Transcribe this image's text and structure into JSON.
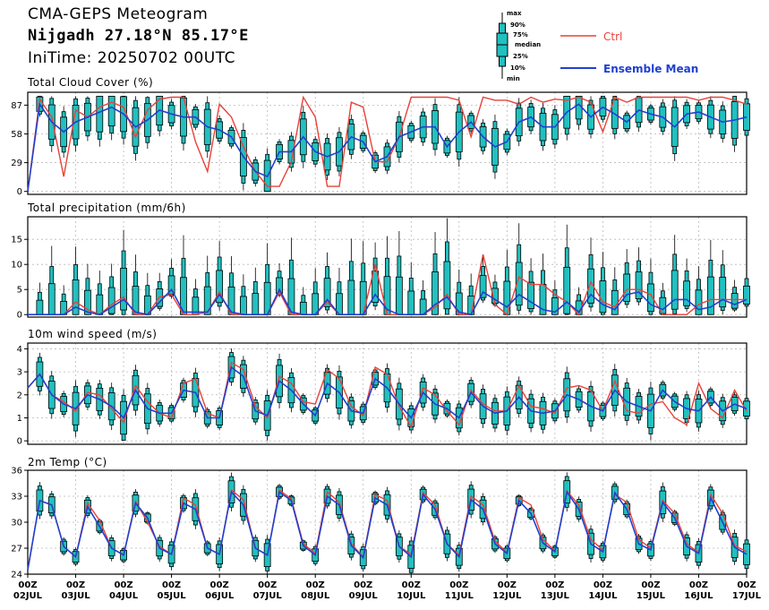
{
  "header": {
    "title": "CMA-GEPS Meteogram",
    "location": "Nijgadh 27.18°N 85.17°E",
    "init_time": "IniTime: 20250702 00UTC"
  },
  "boxplot_key": {
    "labels": [
      "max",
      "90%",
      "75%",
      "median",
      "25%",
      "10%",
      "min"
    ]
  },
  "legend": {
    "ctrl_label": "Ctrl",
    "mean_label": "Ensemble Mean"
  },
  "colors": {
    "ctrl": "#e8413a",
    "mean": "#2040d0",
    "box": "#22c0c0",
    "grid": "#b8b8b8"
  },
  "x_axis": {
    "hours_per_day": 24,
    "step_hours": 6,
    "start": "2025-07-02T00Z",
    "end": "2025-07-17T00Z",
    "tick_labels": [
      [
        "00Z",
        "02JUL"
      ],
      [
        "00Z",
        "03JUL"
      ],
      [
        "00Z",
        "04JUL"
      ],
      [
        "00Z",
        "05JUL"
      ],
      [
        "00Z",
        "06JUL"
      ],
      [
        "00Z",
        "07JUL"
      ],
      [
        "00Z",
        "08JUL"
      ],
      [
        "00Z",
        "09JUL"
      ],
      [
        "00Z",
        "10JUL"
      ],
      [
        "00Z",
        "11JUL"
      ],
      [
        "00Z",
        "12JUL"
      ],
      [
        "00Z",
        "13JUL"
      ],
      [
        "00Z",
        "14JUL"
      ],
      [
        "00Z",
        "15JUL"
      ],
      [
        "00Z",
        "16JUL"
      ],
      [
        "00Z",
        "17JUL"
      ]
    ]
  },
  "chart_data": [
    {
      "type": "boxplot-line",
      "title": "Total Cloud Cover (%)",
      "ylim": [
        -3,
        100
      ],
      "yticks": [
        0,
        29,
        58,
        87
      ],
      "grid": true,
      "series": [
        {
          "name": "Ctrl",
          "values": [
            0,
            93,
            75,
            15,
            82,
            75,
            85,
            90,
            85,
            55,
            82,
            93,
            95,
            95,
            50,
            20,
            88,
            75,
            45,
            20,
            5,
            5,
            30,
            95,
            75,
            5,
            5,
            90,
            85,
            30,
            30,
            55,
            95,
            95,
            95,
            95,
            92,
            55,
            95,
            92,
            92,
            88,
            95,
            90,
            93,
            92,
            95,
            90,
            60,
            95,
            90,
            95,
            95,
            95,
            95,
            95,
            92,
            95,
            95,
            92,
            88
          ]
        },
        {
          "name": "Ensemble Mean",
          "values": [
            0,
            88,
            70,
            60,
            70,
            75,
            80,
            85,
            78,
            65,
            72,
            82,
            78,
            75,
            75,
            65,
            62,
            55,
            35,
            20,
            15,
            40,
            40,
            55,
            40,
            35,
            40,
            55,
            50,
            30,
            35,
            55,
            60,
            65,
            65,
            45,
            60,
            70,
            55,
            45,
            50,
            70,
            75,
            65,
            65,
            80,
            88,
            75,
            85,
            78,
            70,
            82,
            78,
            75,
            65,
            78,
            80,
            75,
            70,
            72,
            75
          ]
        }
      ]
    },
    {
      "type": "boxplot-line",
      "title": "Total precipitation (mm/6h)",
      "ylim": [
        -0.5,
        19.5
      ],
      "yticks": [
        0,
        5,
        10,
        15
      ],
      "grid": true,
      "series": [
        {
          "name": "Ctrl",
          "values": [
            0,
            0,
            0,
            0,
            2.5,
            1,
            0,
            2,
            3.5,
            0,
            0,
            3.5,
            4,
            0,
            0,
            0.5,
            4.5,
            0,
            0,
            0,
            0,
            4.5,
            0,
            0,
            0,
            2.5,
            0,
            0,
            0,
            10,
            0,
            0,
            0,
            0,
            1.5,
            4,
            0,
            0,
            12,
            2,
            0,
            7.5,
            6,
            6,
            4,
            2.5,
            0,
            6.5,
            2.5,
            1.5,
            5,
            5,
            4,
            0,
            0,
            0,
            2,
            3,
            3,
            3,
            3
          ]
        },
        {
          "name": "Ensemble Mean",
          "values": [
            0,
            0,
            0,
            0,
            1.5,
            0.5,
            0,
            1.5,
            3,
            0.5,
            0,
            2.5,
            5,
            0.5,
            0.5,
            0.5,
            4,
            0.5,
            0,
            0,
            0,
            5,
            0.5,
            0,
            0,
            3,
            0,
            0,
            0,
            4,
            1,
            0,
            0,
            0,
            2,
            3.5,
            0.5,
            0,
            4.5,
            3,
            1.5,
            4,
            2.5,
            1,
            0.5,
            2.5,
            0.5,
            4,
            2,
            1,
            4,
            4.5,
            2,
            1,
            3,
            3,
            1,
            1.5,
            3,
            2,
            3
          ]
        }
      ]
    },
    {
      "type": "boxplot-line",
      "title": "10m wind speed (m/s)",
      "ylim": [
        -0.15,
        4.25
      ],
      "yticks": [
        0,
        1,
        2,
        3,
        4
      ],
      "grid": true,
      "series": [
        {
          "name": "Ctrl",
          "values": [
            2.3,
            2.9,
            2,
            1.7,
            1.3,
            2.1,
            2,
            1.4,
            0.8,
            2.4,
            1.7,
            1.2,
            1,
            2.5,
            2.7,
            1.2,
            1,
            3.4,
            3.1,
            1.5,
            1,
            2.8,
            2.5,
            1.7,
            1.6,
            3.1,
            2.7,
            1.5,
            1.1,
            3.2,
            2.9,
            1.5,
            0.6,
            2.3,
            2,
            1.3,
            0.7,
            2.2,
            1.6,
            1.3,
            1.3,
            2.4,
            1.5,
            1.4,
            1.2,
            2.3,
            2.4,
            2.2,
            1.3,
            2.6,
            1.3,
            1.2,
            1.6,
            1.7,
            1.0,
            0.7,
            2.5,
            1.4,
            1.0,
            2.2,
            1.3
          ]
        },
        {
          "name": "Ensemble Mean",
          "values": [
            2.3,
            2.9,
            2,
            1.6,
            1.4,
            2,
            1.8,
            1.5,
            1,
            2.2,
            1.4,
            1.2,
            1.2,
            2.2,
            2.1,
            1,
            1,
            3.2,
            2.8,
            1.3,
            1.1,
            2.6,
            2.2,
            1.6,
            1.1,
            2.5,
            2.1,
            1.3,
            1.2,
            2.7,
            2.3,
            1.6,
            1,
            2.1,
            1.6,
            1.4,
            1,
            2.1,
            1.5,
            1.2,
            1.3,
            1.9,
            1.3,
            1.2,
            1.3,
            2,
            1.8,
            1.5,
            1.3,
            2.2,
            1.7,
            1.5,
            1.3,
            2.2,
            1.7,
            1.4,
            1.3,
            1.9,
            1.3,
            1.6,
            1.4
          ]
        }
      ]
    },
    {
      "type": "boxplot-line",
      "title": "2m Temp (°C)",
      "ylim": [
        24,
        36
      ],
      "yticks": [
        24,
        27,
        30,
        33,
        36
      ],
      "grid": true,
      "series": [
        {
          "name": "Ctrl",
          "values": [
            24.5,
            32.5,
            32,
            27.2,
            26,
            32.2,
            30.2,
            27,
            26.2,
            32.4,
            30,
            27.2,
            26.3,
            32.8,
            32,
            27,
            26.3,
            33.7,
            32.6,
            27,
            26.2,
            33.7,
            32.7,
            27.5,
            26.4,
            33.5,
            32.3,
            27.5,
            26,
            33.2,
            32.5,
            27.2,
            26.3,
            33.4,
            32,
            27.5,
            26.2,
            33,
            32,
            27.8,
            26.5,
            32.8,
            32,
            28,
            26.7,
            33.6,
            32,
            28,
            26.8,
            33.2,
            32.3,
            28,
            27,
            32.5,
            31,
            27.5,
            26.5,
            33.2,
            31,
            27.3,
            26.6
          ]
        },
        {
          "name": "Ensemble Mean",
          "values": [
            24.5,
            32.5,
            32,
            27.2,
            26,
            31.8,
            29.5,
            27,
            26.2,
            32.2,
            30.5,
            27,
            26.3,
            32.2,
            31.5,
            27,
            26.3,
            33.5,
            32,
            27,
            26.2,
            33.5,
            32.5,
            27.3,
            26.2,
            33,
            32,
            27.3,
            25.9,
            32.8,
            32,
            27.2,
            26,
            33.2,
            31.5,
            27.5,
            26,
            32.6,
            31.5,
            27.5,
            26.4,
            32.5,
            31,
            27.6,
            26.6,
            33.5,
            31.5,
            27.5,
            26.6,
            33.4,
            31.5,
            27.5,
            26.8,
            32.3,
            30.5,
            27.2,
            26.4,
            32.8,
            30,
            27.1,
            26.3
          ]
        }
      ]
    }
  ]
}
